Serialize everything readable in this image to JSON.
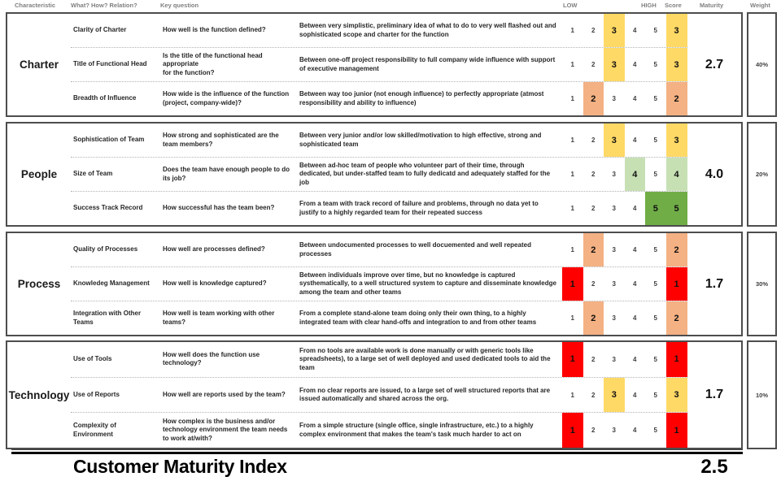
{
  "header": {
    "characteristic": "Characteristic",
    "what_how": "What? How? Relation?",
    "key_question": "Key question",
    "low": "LOW",
    "high": "HIGH",
    "score": "Score",
    "maturity": "Maturity",
    "weight": "Weight"
  },
  "scale": [
    1,
    2,
    3,
    4,
    5
  ],
  "score_colors": {
    "1": "#FF0000",
    "2": "#F4B183",
    "3": "#FFD966",
    "4": "#C6E0B4",
    "5": "#70AD47"
  },
  "sections": [
    {
      "name": "Charter",
      "maturity": "2.7",
      "weight": "40%",
      "rows": [
        {
          "characteristic": "Clarity of Charter",
          "question": "How well is the function defined?",
          "description": "Between very simplistic, preliminary idea of what to do to very well flashed out and sophisticated scope and charter for the function",
          "score": 3
        },
        {
          "characteristic": "Title of Functional Head",
          "question": "Is the title of the functional head appropriate\nfor the function?",
          "description": "Between one-off project responsibility to full company wide influence with support of executive management",
          "score": 3
        },
        {
          "characteristic": "Breadth of Influence",
          "question": "How wide is the influence of the function (project, company-wide)?",
          "description": "Between way too junior (not enough influence) to perfectly appropriate (atmost responsibility and ability to influence)",
          "score": 2
        }
      ]
    },
    {
      "name": "People",
      "maturity": "4.0",
      "weight": "20%",
      "rows": [
        {
          "characteristic": "Sophistication of Team",
          "question": "How strong and sophisticated are the team members?",
          "description": "Between very junior and/or low skilled/motivation to high effective, strong and sophisticated team",
          "score": 3
        },
        {
          "characteristic": "Size of Team",
          "question": "Does the team have enough people to do its job?",
          "description": "Between ad-hoc team of people who volunteer part of their time, through dedicated, but under-staffed team to fully dedicatd and adequately staffed for the job",
          "score": 4
        },
        {
          "characteristic": "Success Track Record",
          "question": "How successful has the team been?",
          "description": "From a team with track record of failure and problems, through no data yet to justify to a highly regarded team for their repeated success",
          "score": 5
        }
      ]
    },
    {
      "name": "Process",
      "maturity": "1.7",
      "weight": "30%",
      "rows": [
        {
          "characteristic": "Quality of Processes",
          "question": "How well are processes defined?",
          "description": "Between undocumented processes to well docuemented and well repeated processes",
          "score": 2
        },
        {
          "characteristic": "Knowledeg Management",
          "question": "How well is knowledge captured?",
          "description": "Between individuals improve over time, but no knowledge is captured systhematically, to a well structured system to capture and disseminate knowledge among the team and other teams",
          "score": 1
        },
        {
          "characteristic": "Integration with Other Teams",
          "question": "How well is team working with other teams?",
          "description": "From a complete stand-alone team doing only their own thing, to a highly integrated team with clear hand-offs and integration to and from other teams",
          "score": 2
        }
      ]
    },
    {
      "name": "Technology",
      "maturity": "1.7",
      "weight": "10%",
      "rows": [
        {
          "characteristic": "Use of Tools",
          "question": "How well does the function use technology?",
          "description": "From no tools are available work is done manually or with generic tools like spreadsheets), to a large set of well deployed and used dedicated tools to aid the team",
          "score": 1
        },
        {
          "characteristic": "Use of Reports",
          "question": "How well are reports used by the team?",
          "description": "From no clear reports are issued, to a large set of well structured reports that are issued automatically and shared across the org.",
          "score": 3
        },
        {
          "characteristic": "Complexity of Environment",
          "question": "How complex is the business and/or technology environment the team needs to work at/with?",
          "description": "From a simple structure (single office, single infrastructure, etc.) to a highly complex environment that makes the team's task much harder to act on",
          "score": 1
        }
      ]
    }
  ],
  "footer": {
    "title": "Customer Maturity Index",
    "value": "2.5"
  }
}
